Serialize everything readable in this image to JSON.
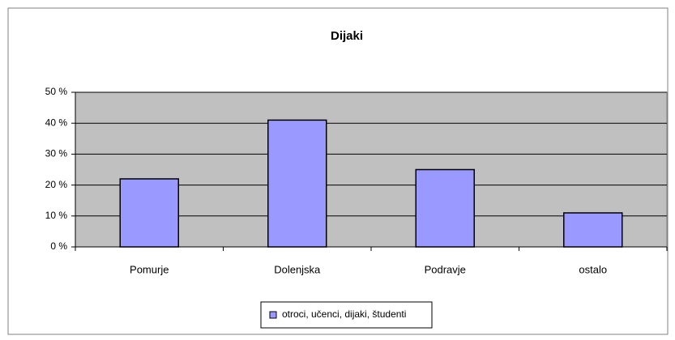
{
  "chart_data": {
    "type": "bar",
    "title": "Dijaki",
    "categories": [
      "Pomurje",
      "Dolenjska",
      "Podravje",
      "ostalo"
    ],
    "series": [
      {
        "name": "otroci, učenci, dijaki, študenti",
        "color": "#9999ff",
        "values": [
          22,
          41,
          25,
          11
        ]
      }
    ],
    "ylim": [
      0,
      50
    ],
    "yticks": [
      {
        "value": 0,
        "label": "0 %"
      },
      {
        "value": 10,
        "label": "10 %"
      },
      {
        "value": 20,
        "label": "20 %"
      },
      {
        "value": 30,
        "label": "30 %"
      },
      {
        "value": 40,
        "label": "40 %"
      },
      {
        "value": 50,
        "label": "50 %"
      }
    ],
    "grid": true,
    "legend": "bottom"
  }
}
